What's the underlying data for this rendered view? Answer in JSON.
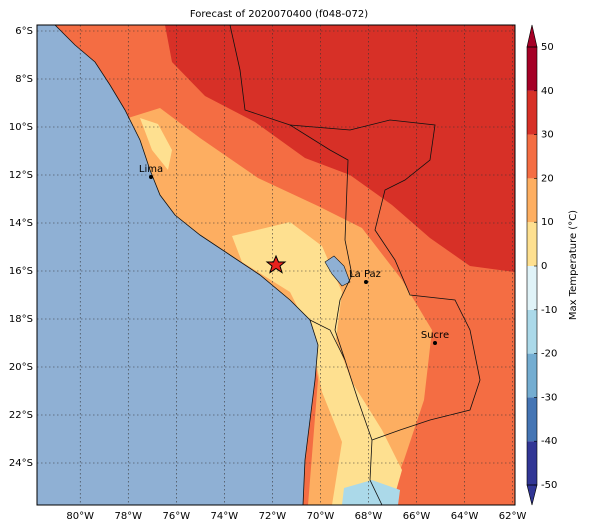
{
  "map": {
    "title": "Forecast of 2020070400 (f048-072)",
    "lon_lim": [
      -81.8,
      -61.9
    ],
    "lat_lim": [
      -25.75,
      -5.75
    ],
    "lon_ticks": [
      {
        "value": -80,
        "label": "80°W"
      },
      {
        "value": -78,
        "label": "78°W"
      },
      {
        "value": -76,
        "label": "76°W"
      },
      {
        "value": -74,
        "label": "74°W"
      },
      {
        "value": -72,
        "label": "72°W"
      },
      {
        "value": -70,
        "label": "70°W"
      },
      {
        "value": -68,
        "label": "68°W"
      },
      {
        "value": -66,
        "label": "66°W"
      },
      {
        "value": -64,
        "label": "64°W"
      },
      {
        "value": -62,
        "label": "62°W"
      }
    ],
    "lat_ticks": [
      {
        "value": -6,
        "label": "6°S"
      },
      {
        "value": -8,
        "label": "8°S"
      },
      {
        "value": -10,
        "label": "10°S"
      },
      {
        "value": -12,
        "label": "12°S"
      },
      {
        "value": -14,
        "label": "14°S"
      },
      {
        "value": -16,
        "label": "16°S"
      },
      {
        "value": -18,
        "label": "18°S"
      },
      {
        "value": -20,
        "label": "20°S"
      },
      {
        "value": -22,
        "label": "22°S"
      },
      {
        "value": -24,
        "label": "24°S"
      }
    ],
    "colorbar": {
      "label": "Max Temperature (°C)",
      "lim": [
        -50,
        50
      ],
      "ticks": [
        -50,
        -40,
        -30,
        -20,
        -10,
        0,
        10,
        20,
        30,
        40,
        50
      ],
      "colors": [
        "#313695",
        "#4575b4",
        "#74add1",
        "#abd9e9",
        "#e0f3f8",
        "#fee090",
        "#fdae61",
        "#f46d43",
        "#d73027",
        "#a50026"
      ]
    },
    "cities": [
      {
        "name": "Lima"
      },
      {
        "name": "La Paz"
      },
      {
        "name": "Sucre"
      }
    ]
  }
}
